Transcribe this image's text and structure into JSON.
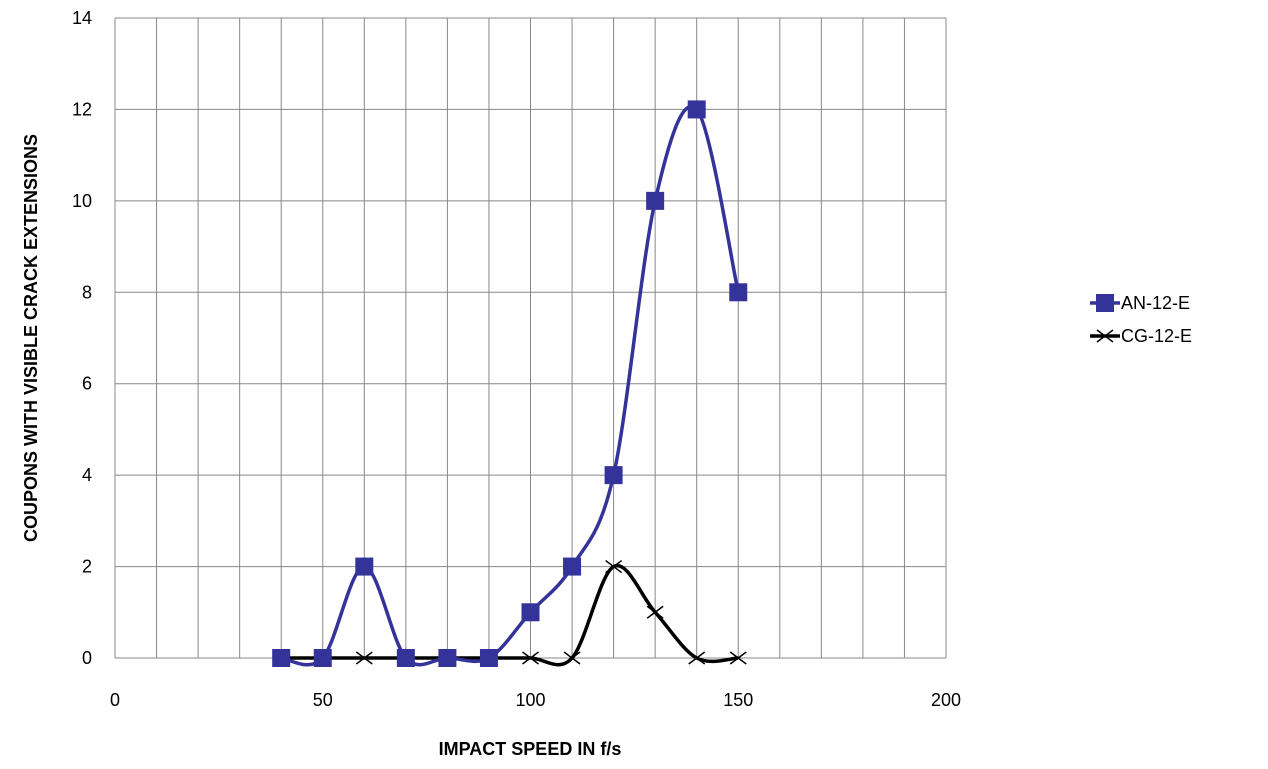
{
  "chart_data": {
    "type": "scatter",
    "title": "",
    "xlabel": "IMPACT SPEED IN f/s",
    "ylabel": "COUPONS WITH VISIBLE CRACK EXTENSIONS",
    "xlim": [
      0,
      200
    ],
    "ylim": [
      0,
      14
    ],
    "x_ticks": [
      0,
      50,
      100,
      150,
      200
    ],
    "y_ticks": [
      0,
      2,
      4,
      6,
      8,
      10,
      12,
      14
    ],
    "x_grid_step": 10,
    "y_grid_step": 2,
    "grid": true,
    "smooth_lines": true,
    "legend_position": "right",
    "series": [
      {
        "name": "AN-12-E",
        "color": "#333399",
        "marker": "square",
        "points": [
          [
            40,
            0
          ],
          [
            50,
            0
          ],
          [
            60,
            2
          ],
          [
            70,
            0
          ],
          [
            80,
            0
          ],
          [
            90,
            0
          ],
          [
            100,
            1
          ],
          [
            110,
            2
          ],
          [
            120,
            4
          ],
          [
            130,
            10
          ],
          [
            140,
            12
          ],
          [
            150,
            8
          ]
        ]
      },
      {
        "name": "CG-12-E",
        "color": "#000000",
        "marker": "x",
        "points": [
          [
            40,
            0
          ],
          [
            50,
            0
          ],
          [
            60,
            0
          ],
          [
            70,
            0
          ],
          [
            80,
            0
          ],
          [
            90,
            0
          ],
          [
            100,
            0
          ],
          [
            110,
            0
          ],
          [
            120,
            2
          ],
          [
            130,
            1
          ],
          [
            140,
            0
          ],
          [
            150,
            0
          ]
        ]
      }
    ]
  }
}
